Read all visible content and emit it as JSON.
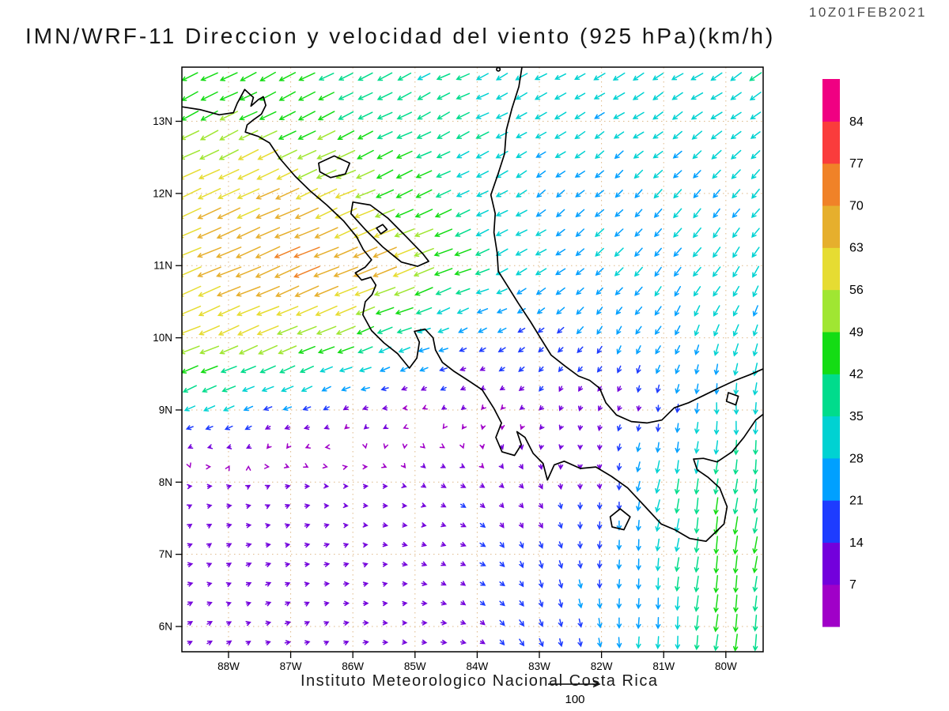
{
  "header": {
    "title": "IMN/WRF-11 Direccion y velocidad del viento (925 hPa)(km/h)",
    "timestamp": "10Z01FEB2021"
  },
  "footer": {
    "attribution": "Instituto Meteorologico Nacional Costa Rica",
    "reference_label": "100"
  },
  "colorbar": {
    "units": "km/h",
    "levels": [
      7,
      14,
      21,
      28,
      35,
      42,
      49,
      56,
      63,
      70,
      77,
      84
    ],
    "colors": [
      "#a000c8",
      "#7300dc",
      "#1e3cff",
      "#00a0ff",
      "#00d2d2",
      "#00dc8c",
      "#14dc14",
      "#a0e632",
      "#e6dc32",
      "#e6af2d",
      "#f08228",
      "#fa3c3c",
      "#f00082"
    ]
  },
  "map": {
    "extent": {
      "lon_min": -88.75,
      "lon_max": -79.4,
      "lat_min": 5.65,
      "lat_max": 13.75
    },
    "grid_color": "#deb887",
    "lat_ticks": [
      {
        "lat": 13,
        "label": "13N"
      },
      {
        "lat": 12,
        "label": "12N"
      },
      {
        "lat": 11,
        "label": "11N"
      },
      {
        "lat": 10,
        "label": "10N"
      },
      {
        "lat": 9,
        "label": "9N"
      },
      {
        "lat": 8,
        "label": "8N"
      },
      {
        "lat": 7,
        "label": "7N"
      },
      {
        "lat": 6,
        "label": "6N"
      }
    ],
    "lon_ticks": [
      {
        "lon": -88,
        "label": "88W"
      },
      {
        "lon": -87,
        "label": "87W"
      },
      {
        "lon": -86,
        "label": "86W"
      },
      {
        "lon": -85,
        "label": "85W"
      },
      {
        "lon": -84,
        "label": "84W"
      },
      {
        "lon": -83,
        "label": "83W"
      },
      {
        "lon": -82,
        "label": "82W"
      },
      {
        "lon": -81,
        "label": "81W"
      },
      {
        "lon": -80,
        "label": "80W"
      }
    ],
    "coastlines": [
      [
        [
          -88.75,
          13.2
        ],
        [
          -88.45,
          13.16
        ],
        [
          -88.15,
          13.09
        ],
        [
          -87.92,
          13.12
        ],
        [
          -87.86,
          13.25
        ],
        [
          -87.74,
          13.44
        ],
        [
          -87.6,
          13.33
        ],
        [
          -87.64,
          13.21
        ],
        [
          -87.52,
          13.3
        ],
        [
          -87.44,
          13.34
        ],
        [
          -87.4,
          13.22
        ],
        [
          -87.47,
          13.1
        ],
        [
          -87.6,
          13.02
        ],
        [
          -87.7,
          12.95
        ],
        [
          -87.73,
          12.85
        ],
        [
          -87.52,
          12.79
        ],
        [
          -87.34,
          12.7
        ],
        [
          -87.17,
          12.48
        ],
        [
          -86.93,
          12.24
        ],
        [
          -86.68,
          12.03
        ],
        [
          -86.42,
          11.84
        ],
        [
          -86.15,
          11.62
        ],
        [
          -85.94,
          11.4
        ],
        [
          -85.83,
          11.22
        ],
        [
          -85.7,
          11.08
        ],
        [
          -85.8,
          10.98
        ],
        [
          -85.96,
          10.9
        ],
        [
          -85.86,
          10.8
        ],
        [
          -85.71,
          10.84
        ],
        [
          -85.63,
          10.73
        ],
        [
          -85.69,
          10.6
        ],
        [
          -85.8,
          10.5
        ],
        [
          -85.84,
          10.32
        ],
        [
          -85.7,
          10.1
        ],
        [
          -85.5,
          9.93
        ],
        [
          -85.28,
          9.78
        ],
        [
          -85.09,
          9.58
        ],
        [
          -84.97,
          9.72
        ],
        [
          -84.93,
          9.94
        ],
        [
          -85.01,
          10.09
        ],
        [
          -84.84,
          10.12
        ],
        [
          -84.71,
          10.0
        ],
        [
          -84.67,
          9.83
        ],
        [
          -84.56,
          9.66
        ],
        [
          -84.38,
          9.54
        ],
        [
          -84.13,
          9.4
        ],
        [
          -83.92,
          9.28
        ],
        [
          -83.73,
          9.02
        ],
        [
          -83.61,
          8.82
        ],
        [
          -83.7,
          8.62
        ],
        [
          -83.6,
          8.42
        ],
        [
          -83.4,
          8.37
        ],
        [
          -83.29,
          8.52
        ],
        [
          -83.36,
          8.7
        ],
        [
          -83.23,
          8.62
        ],
        [
          -83.1,
          8.4
        ],
        [
          -82.94,
          8.26
        ],
        [
          -82.87,
          8.03
        ],
        [
          -82.76,
          8.24
        ],
        [
          -82.6,
          8.29
        ],
        [
          -82.34,
          8.19
        ],
        [
          -82.09,
          8.21
        ],
        [
          -81.84,
          8.08
        ],
        [
          -81.58,
          7.92
        ],
        [
          -81.32,
          7.68
        ],
        [
          -81.04,
          7.42
        ],
        [
          -80.82,
          7.34
        ],
        [
          -80.58,
          7.22
        ],
        [
          -80.32,
          7.18
        ],
        [
          -80.03,
          7.42
        ],
        [
          -79.98,
          7.66
        ],
        [
          -80.1,
          7.92
        ],
        [
          -80.29,
          8.07
        ],
        [
          -80.46,
          8.17
        ],
        [
          -80.52,
          8.32
        ],
        [
          -80.36,
          8.33
        ],
        [
          -80.14,
          8.28
        ],
        [
          -79.9,
          8.42
        ],
        [
          -79.71,
          8.62
        ],
        [
          -79.52,
          8.86
        ],
        [
          -79.4,
          8.94
        ]
      ],
      [
        [
          -83.28,
          13.75
        ],
        [
          -83.33,
          13.48
        ],
        [
          -83.44,
          13.18
        ],
        [
          -83.53,
          12.88
        ],
        [
          -83.56,
          12.55
        ],
        [
          -83.66,
          12.28
        ],
        [
          -83.78,
          11.98
        ],
        [
          -83.71,
          11.72
        ],
        [
          -83.73,
          11.46
        ],
        [
          -83.68,
          11.18
        ],
        [
          -83.66,
          10.92
        ],
        [
          -83.52,
          10.73
        ],
        [
          -83.34,
          10.48
        ],
        [
          -83.14,
          10.22
        ],
        [
          -82.97,
          9.98
        ],
        [
          -82.81,
          9.76
        ],
        [
          -82.59,
          9.61
        ],
        [
          -82.37,
          9.47
        ],
        [
          -82.19,
          9.41
        ],
        [
          -82.03,
          9.3
        ],
        [
          -81.93,
          9.1
        ],
        [
          -81.76,
          8.93
        ],
        [
          -81.52,
          8.84
        ],
        [
          -81.27,
          8.82
        ],
        [
          -81.03,
          8.86
        ],
        [
          -80.83,
          9.03
        ],
        [
          -80.6,
          9.1
        ],
        [
          -80.36,
          9.2
        ],
        [
          -80.1,
          9.31
        ],
        [
          -79.85,
          9.41
        ],
        [
          -79.61,
          9.49
        ],
        [
          -79.4,
          9.57
        ]
      ]
    ],
    "lakes": [
      [
        [
          -86.0,
          11.88
        ],
        [
          -85.72,
          11.84
        ],
        [
          -85.44,
          11.66
        ],
        [
          -85.14,
          11.4
        ],
        [
          -84.87,
          11.16
        ],
        [
          -84.78,
          11.06
        ],
        [
          -84.96,
          10.99
        ],
        [
          -85.22,
          11.05
        ],
        [
          -85.52,
          11.26
        ],
        [
          -85.8,
          11.5
        ],
        [
          -86.03,
          11.72
        ]
      ],
      [
        [
          -86.55,
          12.42
        ],
        [
          -86.3,
          12.52
        ],
        [
          -86.05,
          12.42
        ],
        [
          -86.12,
          12.27
        ],
        [
          -86.36,
          12.22
        ],
        [
          -86.53,
          12.3
        ]
      ],
      [
        [
          -85.62,
          11.52
        ],
        [
          -85.52,
          11.57
        ],
        [
          -85.45,
          11.5
        ],
        [
          -85.55,
          11.44
        ]
      ],
      [
        [
          -81.86,
          7.52
        ],
        [
          -81.7,
          7.63
        ],
        [
          -81.54,
          7.52
        ],
        [
          -81.64,
          7.34
        ],
        [
          -81.83,
          7.38
        ]
      ],
      [
        [
          -79.96,
          9.24
        ],
        [
          -79.8,
          9.19
        ],
        [
          -79.84,
          9.07
        ],
        [
          -79.99,
          9.12
        ]
      ]
    ],
    "islets": [
      {
        "lon": -83.66,
        "lat": 13.72
      }
    ]
  },
  "wind_field": {
    "units": "km/h",
    "level_hpa": 925,
    "grid_lons": [
      -89,
      -88,
      -87,
      -86,
      -85,
      -84,
      -83,
      -82,
      -81,
      -80,
      -79
    ],
    "grid_lats": [
      14,
      13,
      12,
      11,
      10,
      9,
      8,
      7,
      6,
      5
    ],
    "u": [
      [
        -40,
        -40,
        -38,
        -35,
        -32,
        -30,
        -28,
        -28,
        -28,
        -30,
        -30
      ],
      [
        -44,
        -44,
        -42,
        -38,
        -34,
        -30,
        -27,
        -25,
        -25,
        -26,
        -26
      ],
      [
        -54,
        -56,
        -58,
        -50,
        -40,
        -30,
        -22,
        -19,
        -18,
        -18,
        -17
      ],
      [
        -58,
        -62,
        -66,
        -64,
        -57,
        -36,
        -25,
        -20,
        -18,
        -18,
        -16
      ],
      [
        -50,
        -52,
        -50,
        -43,
        -30,
        -18,
        -15,
        -12,
        -12,
        -10,
        -8
      ],
      [
        -28,
        -24,
        -18,
        -11,
        -6,
        -5,
        -6,
        -4,
        -2,
        0,
        -2
      ],
      [
        8,
        8,
        9,
        8,
        8,
        10,
        5,
        0,
        -8,
        -5,
        -5
      ],
      [
        10,
        10,
        11,
        10,
        10,
        12,
        6,
        0,
        -4,
        -6,
        -6
      ],
      [
        10,
        10,
        11,
        11,
        11,
        12,
        8,
        2,
        -2,
        -5,
        -5
      ],
      [
        10,
        10,
        11,
        11,
        11,
        12,
        9,
        3,
        -2,
        -5,
        -5
      ]
    ],
    "v": [
      [
        -20,
        -20,
        -19,
        -18,
        -16,
        -15,
        -15,
        -16,
        -17,
        -19,
        -19
      ],
      [
        -22,
        -22,
        -21,
        -19,
        -17,
        -15,
        -15,
        -16,
        -17,
        -18,
        -18
      ],
      [
        -25,
        -26,
        -26,
        -22,
        -18,
        -15,
        -16,
        -18,
        -20,
        -22,
        -22
      ],
      [
        -24,
        -26,
        -28,
        -26,
        -22,
        -14,
        -15,
        -18,
        -22,
        -25,
        -25
      ],
      [
        -21,
        -22,
        -21,
        -17,
        -11,
        -8,
        -12,
        -18,
        -22,
        -28,
        -30
      ],
      [
        -12,
        -10,
        -8,
        -4,
        -2,
        -4,
        -8,
        -10,
        -16,
        -30,
        -32
      ],
      [
        2,
        3,
        2,
        0,
        -3,
        -6,
        -10,
        -12,
        -35,
        -40,
        -32
      ],
      [
        4,
        4,
        3,
        2,
        -2,
        -8,
        -16,
        -20,
        -30,
        -48,
        -33
      ],
      [
        5,
        5,
        4,
        2,
        0,
        -6,
        -18,
        -22,
        -30,
        -44,
        -35
      ],
      [
        5,
        5,
        4,
        3,
        1,
        -5,
        -18,
        -24,
        -30,
        -40,
        -35
      ]
    ],
    "arrow_extent": {
      "lon0": -88.62,
      "lon1": -79.52,
      "lat0": 13.62,
      "lat1": 5.78
    },
    "arrows_nx": 30,
    "arrows_ny": 30
  }
}
